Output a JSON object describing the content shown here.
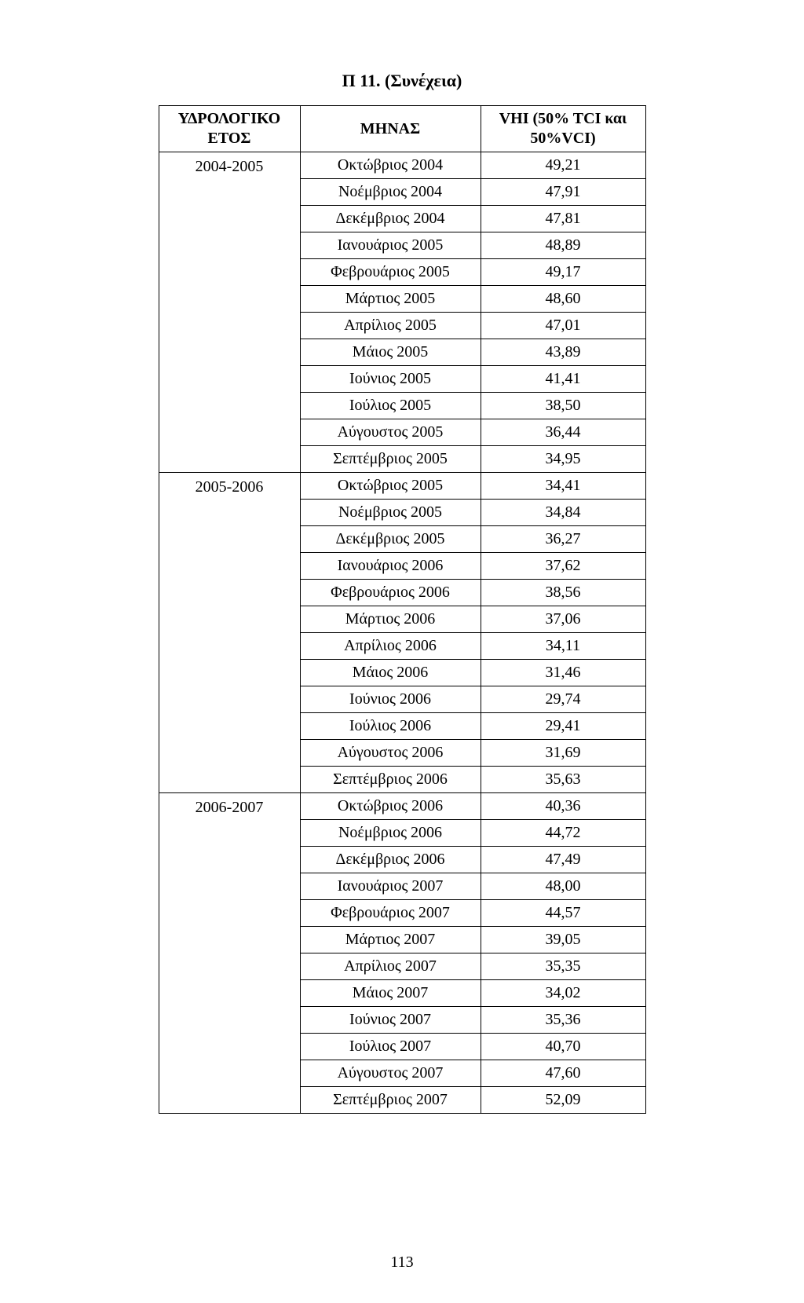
{
  "title": "Π 11. (Συνέχεια)",
  "columns": {
    "year": "ΥΔΡΟΛΟΓΙΚΟ ΕΤΟΣ",
    "month": "ΜΗΝΑΣ",
    "value": "VHI (50% TCI και 50%VCI)"
  },
  "groups": [
    {
      "year": "2004-2005",
      "rows": [
        {
          "month": "Οκτώβριος 2004",
          "value": "49,21"
        },
        {
          "month": "Νοέμβριος 2004",
          "value": "47,91"
        },
        {
          "month": "Δεκέμβριος 2004",
          "value": "47,81"
        },
        {
          "month": "Ιανουάριος 2005",
          "value": "48,89"
        },
        {
          "month": "Φεβρουάριος 2005",
          "value": "49,17"
        },
        {
          "month": "Μάρτιος 2005",
          "value": "48,60"
        },
        {
          "month": "Απρίλιος 2005",
          "value": "47,01"
        },
        {
          "month": "Μάιος 2005",
          "value": "43,89"
        },
        {
          "month": "Ιούνιος 2005",
          "value": "41,41"
        },
        {
          "month": "Ιούλιος 2005",
          "value": "38,50"
        },
        {
          "month": "Αύγουστος 2005",
          "value": "36,44"
        },
        {
          "month": "Σεπτέμβριος 2005",
          "value": "34,95"
        }
      ]
    },
    {
      "year": "2005-2006",
      "rows": [
        {
          "month": "Οκτώβριος 2005",
          "value": "34,41"
        },
        {
          "month": "Νοέμβριος 2005",
          "value": "34,84"
        },
        {
          "month": "Δεκέμβριος 2005",
          "value": "36,27"
        },
        {
          "month": "Ιανουάριος 2006",
          "value": "37,62"
        },
        {
          "month": "Φεβρουάριος 2006",
          "value": "38,56"
        },
        {
          "month": "Μάρτιος 2006",
          "value": "37,06"
        },
        {
          "month": "Απρίλιος 2006",
          "value": "34,11"
        },
        {
          "month": "Μάιος 2006",
          "value": "31,46"
        },
        {
          "month": "Ιούνιος 2006",
          "value": "29,74"
        },
        {
          "month": "Ιούλιος 2006",
          "value": "29,41"
        },
        {
          "month": "Αύγουστος 2006",
          "value": "31,69"
        },
        {
          "month": "Σεπτέμβριος 2006",
          "value": "35,63"
        }
      ]
    },
    {
      "year": "2006-2007",
      "rows": [
        {
          "month": "Οκτώβριος 2006",
          "value": "40,36"
        },
        {
          "month": "Νοέμβριος 2006",
          "value": "44,72"
        },
        {
          "month": "Δεκέμβριος 2006",
          "value": "47,49"
        },
        {
          "month": "Ιανουάριος 2007",
          "value": "48,00"
        },
        {
          "month": "Φεβρουάριος 2007",
          "value": "44,57"
        },
        {
          "month": "Μάρτιος 2007",
          "value": "39,05"
        },
        {
          "month": "Απρίλιος 2007",
          "value": "35,35"
        },
        {
          "month": "Μάιος 2007",
          "value": "34,02"
        },
        {
          "month": "Ιούνιος 2007",
          "value": "35,36"
        },
        {
          "month": "Ιούλιος 2007",
          "value": "40,70"
        },
        {
          "month": "Αύγουστος 2007",
          "value": "47,60"
        },
        {
          "month": "Σεπτέμβριος 2007",
          "value": "52,09"
        }
      ]
    }
  ],
  "page_number": "113"
}
